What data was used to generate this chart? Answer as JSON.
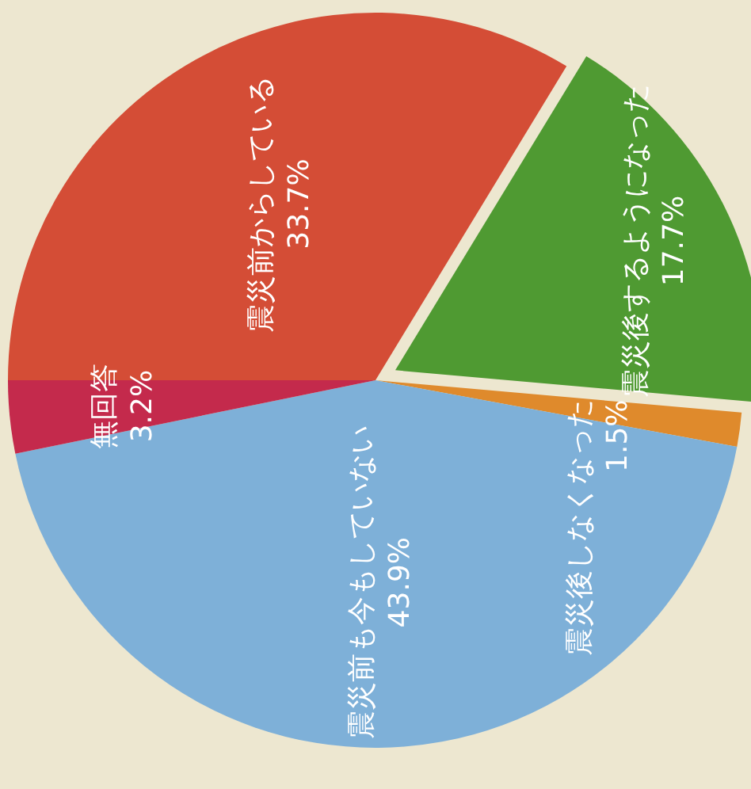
{
  "chart_data": {
    "type": "pie",
    "categories": [
      "震災前からしている",
      "震災後するようになった",
      "震災後しなくなった",
      "震災前も今もしていない",
      "無回答"
    ],
    "values": [
      33.7,
      17.7,
      1.5,
      43.9,
      3.2
    ],
    "value_labels": [
      "33.7%",
      "17.7%",
      "1.5%",
      "43.9%",
      "3.2%"
    ],
    "colors": [
      "#d44d36",
      "#4f9a32",
      "#df8a2c",
      "#7eb0d8",
      "#c42a4c"
    ]
  }
}
